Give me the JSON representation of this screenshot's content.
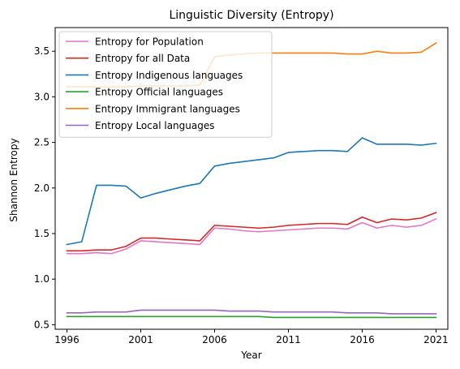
{
  "chart_data": {
    "type": "line",
    "title": "Linguistic Diversity (Entropy)",
    "xlabel": "Year",
    "ylabel": "Shannon Entropy",
    "xlim": [
      1995.2,
      2021.8
    ],
    "ylim": [
      0.45,
      3.76
    ],
    "xticks": [
      1996,
      2001,
      2006,
      2011,
      2016,
      2021
    ],
    "yticks": [
      0.5,
      1.0,
      1.5,
      2.0,
      2.5,
      3.0,
      3.5
    ],
    "ytick_labels": [
      "0.5",
      "1.0",
      "1.5",
      "2.0",
      "2.5",
      "3.0",
      "3.5"
    ],
    "grid": false,
    "legend_position": "upper-left",
    "x": [
      1996,
      1997,
      1998,
      1999,
      2000,
      2001,
      2002,
      2003,
      2004,
      2005,
      2006,
      2007,
      2008,
      2009,
      2010,
      2011,
      2012,
      2013,
      2014,
      2015,
      2016,
      2017,
      2018,
      2019,
      2020,
      2021
    ],
    "series": [
      {
        "name": "Entropy for Population",
        "color": "#e377c2",
        "values": [
          1.28,
          1.28,
          1.29,
          1.28,
          1.33,
          1.42,
          1.41,
          1.4,
          1.39,
          1.38,
          1.56,
          1.55,
          1.53,
          1.52,
          1.53,
          1.54,
          1.55,
          1.56,
          1.56,
          1.55,
          1.62,
          1.56,
          1.59,
          1.57,
          1.59,
          1.66
        ]
      },
      {
        "name": "Entropy for all Data",
        "color": "#d62728",
        "values": [
          1.31,
          1.31,
          1.32,
          1.32,
          1.36,
          1.45,
          1.45,
          1.44,
          1.43,
          1.42,
          1.59,
          1.58,
          1.57,
          1.56,
          1.57,
          1.59,
          1.6,
          1.61,
          1.61,
          1.6,
          1.68,
          1.62,
          1.66,
          1.65,
          1.67,
          1.73
        ]
      },
      {
        "name": "Entropy Indigenous languages",
        "color": "#1f77b4",
        "values": [
          1.38,
          1.41,
          2.03,
          2.03,
          2.02,
          1.89,
          1.94,
          1.98,
          2.02,
          2.05,
          2.24,
          2.27,
          2.29,
          2.31,
          2.33,
          2.39,
          2.4,
          2.41,
          2.41,
          2.4,
          2.55,
          2.48,
          2.48,
          2.48,
          2.47,
          2.49
        ]
      },
      {
        "name": "Entropy Official languages",
        "color": "#2ca02c",
        "values": [
          0.59,
          0.59,
          0.59,
          0.59,
          0.59,
          0.59,
          0.59,
          0.59,
          0.59,
          0.59,
          0.59,
          0.59,
          0.59,
          0.59,
          0.58,
          0.58,
          0.58,
          0.58,
          0.58,
          0.58,
          0.58,
          0.58,
          0.58,
          0.58,
          0.58,
          0.58
        ]
      },
      {
        "name": "Entropy Immigrant languages",
        "color": "#ff7f0e",
        "values": [
          3.11,
          3.11,
          3.11,
          3.11,
          3.11,
          3.12,
          3.12,
          3.12,
          3.12,
          3.13,
          3.44,
          3.46,
          3.47,
          3.48,
          3.48,
          3.48,
          3.48,
          3.48,
          3.48,
          3.47,
          3.47,
          3.5,
          3.48,
          3.48,
          3.49,
          3.59
        ]
      },
      {
        "name": "Entropy Local languages",
        "color": "#9467bd",
        "values": [
          0.63,
          0.63,
          0.64,
          0.64,
          0.64,
          0.66,
          0.66,
          0.66,
          0.66,
          0.66,
          0.66,
          0.65,
          0.65,
          0.65,
          0.64,
          0.64,
          0.64,
          0.64,
          0.64,
          0.63,
          0.63,
          0.63,
          0.62,
          0.62,
          0.62,
          0.62
        ]
      }
    ]
  }
}
